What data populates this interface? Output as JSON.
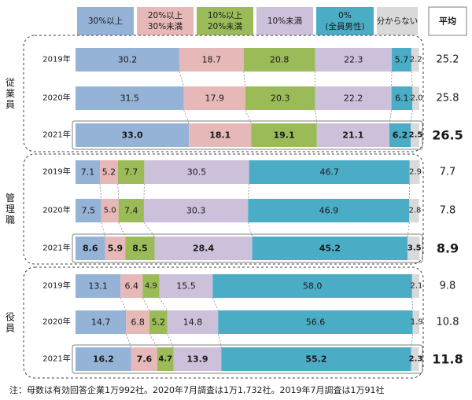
{
  "chart_data": {
    "type": "bar",
    "orientation": "horizontal-stacked-100",
    "title": "",
    "legend": [
      {
        "label": "30%以上",
        "color": "#95b3d7"
      },
      {
        "label": "20%以上\n30%未満",
        "color": "#e6b9b8"
      },
      {
        "label": "10%以上\n20%未満",
        "color": "#9bbb59"
      },
      {
        "label": "10%未満",
        "color": "#ccc0da"
      },
      {
        "label": "0%\n(全員男性)",
        "color": "#4bacc6"
      },
      {
        "label": "分からない",
        "color": "#d9d9d9"
      }
    ],
    "average_header": "平均",
    "groups": [
      {
        "label": "従業員",
        "rows": [
          {
            "year": "2019年",
            "values": [
              30.2,
              18.7,
              20.8,
              22.3,
              5.7,
              2.2
            ],
            "average": 25.2,
            "emphasis": false
          },
          {
            "year": "2020年",
            "values": [
              31.5,
              17.9,
              20.3,
              22.2,
              6.1,
              2.0
            ],
            "average": 25.8,
            "emphasis": false
          },
          {
            "year": "2021年",
            "values": [
              33.0,
              18.1,
              19.1,
              21.1,
              6.2,
              2.5
            ],
            "average": 26.5,
            "emphasis": true
          }
        ]
      },
      {
        "label": "管理職",
        "rows": [
          {
            "year": "2019年",
            "values": [
              7.1,
              5.2,
              7.7,
              30.5,
              46.7,
              2.9
            ],
            "average": 7.7,
            "emphasis": false
          },
          {
            "year": "2020年",
            "values": [
              7.5,
              5.0,
              7.4,
              30.3,
              46.9,
              2.8
            ],
            "average": 7.8,
            "emphasis": false
          },
          {
            "year": "2021年",
            "values": [
              8.6,
              5.9,
              8.5,
              28.4,
              45.2,
              3.5
            ],
            "average": 8.9,
            "emphasis": true
          }
        ]
      },
      {
        "label": "役員",
        "rows": [
          {
            "year": "2019年",
            "values": [
              13.1,
              6.4,
              4.9,
              15.5,
              58.0,
              2.1
            ],
            "average": 9.8,
            "emphasis": false
          },
          {
            "year": "2020年",
            "values": [
              14.7,
              6.8,
              5.2,
              14.8,
              56.6,
              1.9
            ],
            "average": 10.8,
            "emphasis": false
          },
          {
            "year": "2021年",
            "values": [
              16.2,
              7.6,
              4.7,
              13.9,
              55.2,
              2.3
            ],
            "average": 11.8,
            "emphasis": true
          }
        ]
      }
    ],
    "value_format": "0.0"
  },
  "footnote": "注：母数は有効回答企業1万992社。2020年7月調査は1万1,732社。2019年7月調査は1万91社"
}
